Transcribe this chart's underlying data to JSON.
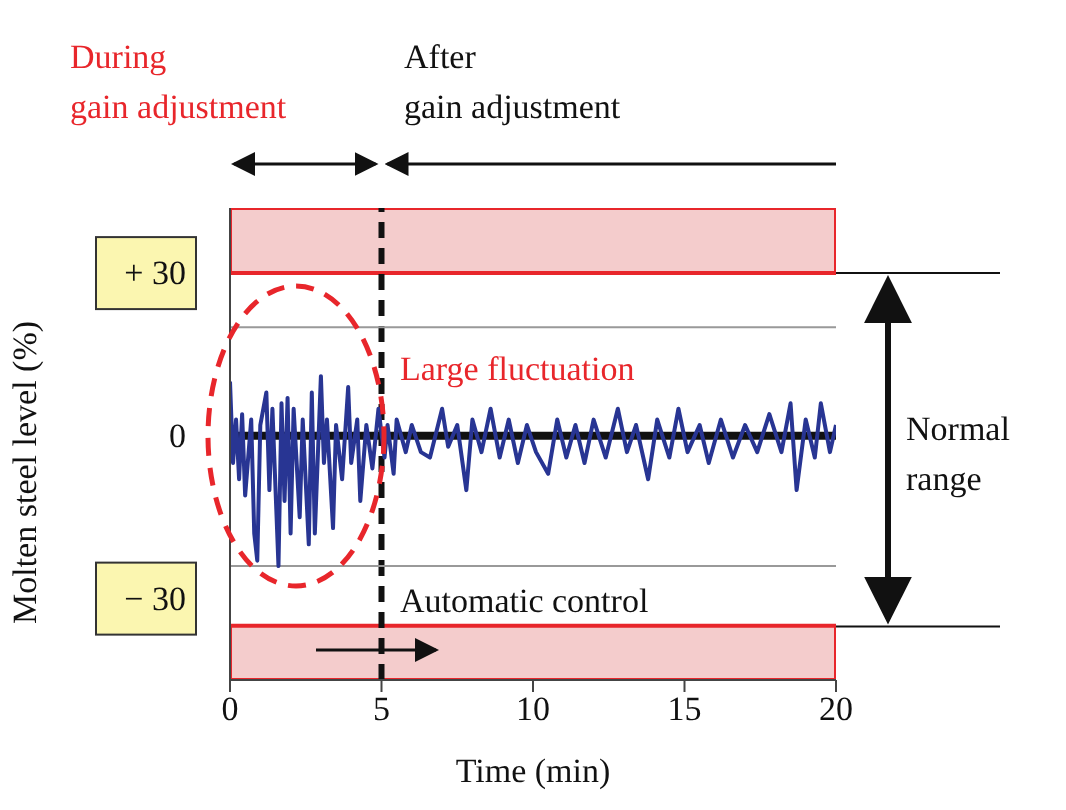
{
  "chart_data": {
    "type": "line",
    "xlabel": "Time (min)",
    "ylabel": "Molten steel level (%)",
    "xlim": [
      0,
      20
    ],
    "xticks": [
      0,
      5,
      10,
      15,
      20
    ],
    "ylim": [
      -45,
      42
    ],
    "yticks": [
      {
        "value": -30,
        "label": "− 30"
      },
      0,
      {
        "value": 30,
        "label": "+ 30"
      }
    ],
    "x": [
      0,
      0.1,
      0.2,
      0.3,
      0.4,
      0.5,
      0.7,
      0.8,
      0.9,
      1.0,
      1.2,
      1.3,
      1.4,
      1.6,
      1.7,
      1.8,
      1.9,
      2.0,
      2.1,
      2.3,
      2.4,
      2.6,
      2.7,
      2.8,
      3.0,
      3.1,
      3.2,
      3.4,
      3.5,
      3.7,
      3.9,
      4.0,
      4.2,
      4.3,
      4.5,
      4.7,
      4.9,
      5.1,
      5.2,
      5.4,
      5.5,
      5.8,
      6.0,
      6.3,
      6.6,
      7.0,
      7.2,
      7.5,
      7.8,
      8.0,
      8.3,
      8.6,
      8.9,
      9.2,
      9.5,
      9.8,
      10.1,
      10.5,
      10.8,
      11.1,
      11.4,
      11.7,
      12.0,
      12.4,
      12.8,
      13.1,
      13.4,
      13.8,
      14.1,
      14.5,
      14.8,
      15.1,
      15.5,
      15.8,
      16.2,
      16.6,
      17.0,
      17.4,
      17.8,
      18.2,
      18.5,
      18.7,
      19.0,
      19.3,
      19.5,
      19.8,
      20.0
    ],
    "series": [
      {
        "color": "#283593",
        "values": [
          10,
          -5,
          3,
          -8,
          4,
          -11,
          3,
          -18,
          -23,
          2,
          8,
          -10,
          5,
          -24,
          6,
          -12,
          7,
          -18,
          5,
          -15,
          3,
          -20,
          8,
          -18,
          11,
          -5,
          3,
          -17,
          2,
          -8,
          9,
          -5,
          3,
          -12,
          2,
          -6,
          5,
          -4,
          2,
          -7,
          3,
          -3,
          2,
          -3,
          -4,
          5,
          -2,
          2,
          -10,
          3,
          -3,
          5,
          -4,
          3,
          -5,
          2,
          -3,
          -7,
          3,
          -4,
          2,
          -5,
          3,
          -4,
          5,
          -3,
          2,
          -8,
          3,
          -4,
          5,
          -3,
          2,
          -5,
          3,
          -4,
          2,
          -3,
          4,
          -3,
          6,
          -10,
          3,
          -4,
          6,
          -3,
          2
        ]
      }
    ],
    "ref_lines": [
      {
        "axis": "x",
        "value": 5,
        "color": "#111111",
        "line_style": "dashed"
      },
      {
        "axis": "y",
        "value": 0,
        "color": "#111111"
      },
      {
        "axis": "y",
        "value": 20,
        "color": "#999999"
      },
      {
        "axis": "y",
        "value": -24,
        "color": "#999999"
      }
    ],
    "bands": [
      {
        "axis": "y",
        "from": 30,
        "to": 42,
        "color": "#f4cccc"
      },
      {
        "axis": "y",
        "from": -45,
        "to": -35,
        "color": "#f4cccc"
      }
    ],
    "annotations": [
      "During\ngain adjustment",
      "After\ngain adjustment",
      "Large fluctuation",
      "Normal\nrange",
      "Automatic control"
    ],
    "legend": false,
    "grid": false,
    "marker": "none",
    "line_style": "solid"
  }
}
